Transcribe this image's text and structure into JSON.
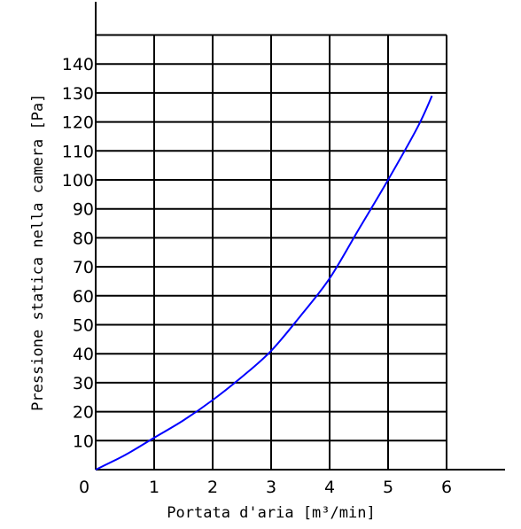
{
  "chart_data": {
    "type": "line",
    "title": "",
    "xlabel": "Portata d'aria [m³/min]",
    "ylabel": "Pressione statica nella camera [Pa]",
    "xlim": [
      0,
      6
    ],
    "ylim": [
      0,
      150
    ],
    "grid": true,
    "x_ticks": [
      0,
      1,
      2,
      3,
      4,
      5,
      6
    ],
    "y_ticks": [
      10,
      20,
      30,
      40,
      50,
      60,
      70,
      80,
      90,
      100,
      110,
      120,
      130,
      140
    ],
    "series": [
      {
        "color": "#0000ff",
        "x": [
          0,
          0.5,
          1,
          1.5,
          2,
          2.5,
          3,
          3.5,
          4,
          4.5,
          5,
          5.5,
          5.75
        ],
        "y": [
          0,
          5,
          11,
          17,
          24,
          32,
          41,
          53,
          66,
          83,
          100,
          118,
          129
        ]
      }
    ],
    "axis_color": "#000000"
  }
}
